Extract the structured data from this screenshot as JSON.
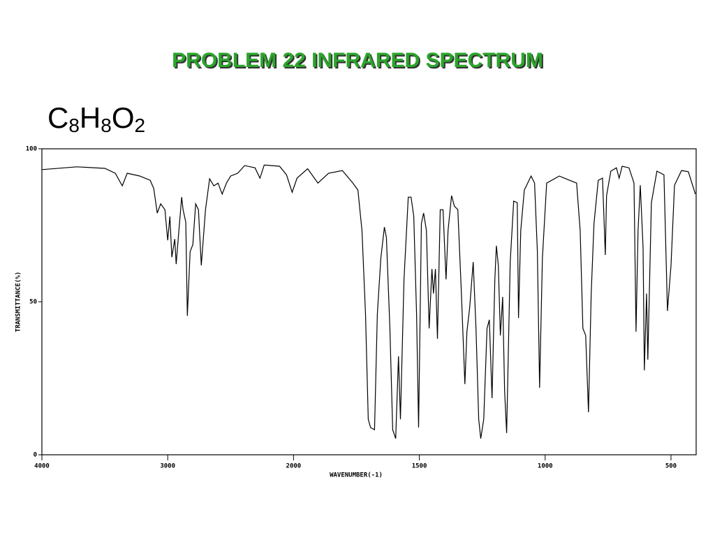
{
  "chart_data": {
    "type": "line",
    "title": "PROBLEM  22   INFRARED SPECTRUM",
    "formula": [
      "C",
      "8",
      "H",
      "8",
      "O",
      "2"
    ],
    "xlabel": "WAVENUMBER(-1)",
    "ylabel": "TRANSMITTANCE(%)",
    "xlim": [
      4000,
      400
    ],
    "xbreak": 2000,
    "xticks": [
      4000,
      3000,
      2000,
      1500,
      1000,
      500
    ],
    "ylim": [
      0,
      100
    ],
    "yticks": [
      0,
      50,
      100
    ],
    "x": [
      4000,
      3722,
      3500,
      3417,
      3361,
      3322,
      3222,
      3139,
      3111,
      3083,
      3056,
      3022,
      3000,
      2983,
      2967,
      2944,
      2933,
      2911,
      2889,
      2878,
      2856,
      2844,
      2822,
      2800,
      2778,
      2756,
      2733,
      2700,
      2667,
      2633,
      2600,
      2567,
      2533,
      2500,
      2444,
      2389,
      2306,
      2267,
      2233,
      2111,
      2056,
      2011,
      1986,
      1944,
      1903,
      1861,
      1806,
      1764,
      1744,
      1728,
      1714,
      1703,
      1694,
      1678,
      1667,
      1653,
      1639,
      1631,
      1617,
      1606,
      1594,
      1583,
      1575,
      1561,
      1544,
      1533,
      1522,
      1511,
      1503,
      1492,
      1483,
      1472,
      1461,
      1450,
      1444,
      1436,
      1428,
      1417,
      1406,
      1394,
      1386,
      1372,
      1361,
      1347,
      1333,
      1319,
      1311,
      1300,
      1286,
      1275,
      1264,
      1256,
      1244,
      1231,
      1222,
      1211,
      1200,
      1194,
      1186,
      1178,
      1169,
      1161,
      1153,
      1139,
      1125,
      1111,
      1106,
      1097,
      1083,
      1056,
      1042,
      1031,
      1022,
      1011,
      994,
      944,
      903,
      875,
      861,
      850,
      839,
      828,
      817,
      806,
      789,
      772,
      761,
      756,
      739,
      717,
      706,
      694,
      667,
      647,
      639,
      631,
      622,
      611,
      606,
      597,
      592,
      578,
      556,
      528,
      514,
      500,
      486,
      458,
      431,
      403
    ],
    "series": [
      {
        "name": "transmittance",
        "color": "#000000",
        "values": [
          93.2,
          94.1,
          93.6,
          92.0,
          87.9,
          92.0,
          91.1,
          89.7,
          87.0,
          79.0,
          82.0,
          80.1,
          70.1,
          77.9,
          64.6,
          70.5,
          62.3,
          73.3,
          84.2,
          80.1,
          76.0,
          45.4,
          66.4,
          68.7,
          82.0,
          80.1,
          61.9,
          80.1,
          90.2,
          87.9,
          88.8,
          85.2,
          88.8,
          91.1,
          92.0,
          94.5,
          93.8,
          90.4,
          94.7,
          94.3,
          91.5,
          85.8,
          90.4,
          93.5,
          88.8,
          92.0,
          92.9,
          88.8,
          86.5,
          73.3,
          45.9,
          11.6,
          8.9,
          8.2,
          45.9,
          64.2,
          74.4,
          71.0,
          41.3,
          8.2,
          5.3,
          32.2,
          11.6,
          57.3,
          84.2,
          84.2,
          77.9,
          45.9,
          8.9,
          75.6,
          79.0,
          73.3,
          41.3,
          60.7,
          52.7,
          60.7,
          37.9,
          80.1,
          80.1,
          57.3,
          73.3,
          84.7,
          81.3,
          80.1,
          52.7,
          23.1,
          40.2,
          48.2,
          63.0,
          41.3,
          11.6,
          5.3,
          11.6,
          41.3,
          44.1,
          18.5,
          57.3,
          68.3,
          61.9,
          39.0,
          51.6,
          20.8,
          7.1,
          63.0,
          82.9,
          82.4,
          44.7,
          73.3,
          86.5,
          91.1,
          88.8,
          66.4,
          21.9,
          64.2,
          88.8,
          91.1,
          89.7,
          88.8,
          73.3,
          41.3,
          39.0,
          13.9,
          52.7,
          75.6,
          89.7,
          90.4,
          65.3,
          84.7,
          92.7,
          93.8,
          90.4,
          94.3,
          93.8,
          88.8,
          40.2,
          73.3,
          88.1,
          67.6,
          27.6,
          52.7,
          31.1,
          82.4,
          92.7,
          91.5,
          47.0,
          61.9,
          88.1,
          92.9,
          92.5,
          85.2
        ]
      }
    ]
  }
}
